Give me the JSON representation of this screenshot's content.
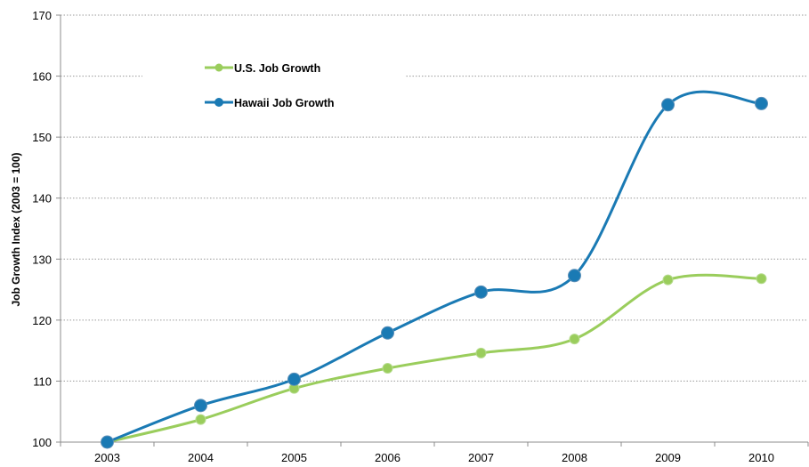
{
  "chart_data": {
    "type": "line",
    "categories": [
      "2003",
      "2004",
      "2005",
      "2006",
      "2007",
      "2008",
      "2009",
      "2010"
    ],
    "series": [
      {
        "name": "U.S. Job Growth",
        "color": "#9acd5c",
        "values": [
          100,
          103.7,
          108.8,
          112.1,
          114.6,
          116.9,
          126.6,
          126.8
        ]
      },
      {
        "name": "Hawaii Job Growth",
        "color": "#1a7ab4",
        "values": [
          100,
          106.0,
          110.3,
          117.9,
          124.6,
          127.3,
          155.3,
          155.5
        ]
      }
    ],
    "xlabel": "",
    "ylabel": "Job Growth Index (2003 = 100)",
    "ylim": [
      100,
      170
    ],
    "yticks": [
      "100",
      "110",
      "120",
      "130",
      "140",
      "150",
      "160",
      "170"
    ],
    "grid": "horizontal dotted",
    "legend": "top-left",
    "smooth": true
  }
}
